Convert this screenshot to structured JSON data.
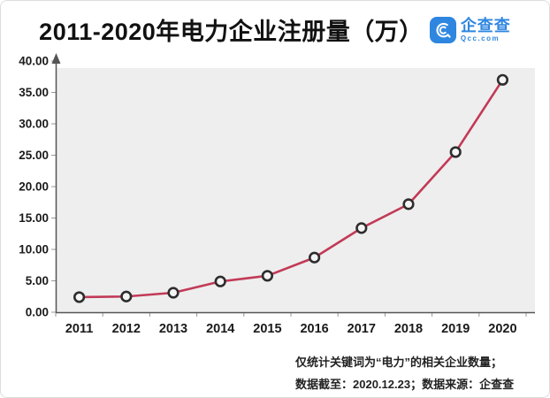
{
  "header": {
    "title": "2011-2020年电力企业注册量（万）",
    "logo": {
      "brand": "企查查",
      "domain": "Qcc.com",
      "color": "#2e86e0"
    }
  },
  "chart_data": {
    "type": "line",
    "title": "2011-2020年电力企业注册量（万）",
    "categories": [
      "2011",
      "2012",
      "2013",
      "2014",
      "2015",
      "2016",
      "2017",
      "2018",
      "2019",
      "2020"
    ],
    "series": [
      {
        "name": "电力企业注册量（万）",
        "values": [
          2.4,
          2.5,
          3.1,
          4.9,
          5.8,
          8.7,
          13.4,
          17.2,
          25.5,
          37.0
        ]
      }
    ],
    "xlabel": "",
    "ylabel": "",
    "ylim": [
      0,
      40
    ],
    "ytick_step": 5,
    "ytick_labels": [
      "0.00",
      "5.00",
      "10.00",
      "15.00",
      "20.00",
      "25.00",
      "30.00",
      "35.00",
      "40.00"
    ],
    "grid": false,
    "legend": "none",
    "plot_bg": "#eeeeee",
    "line_color": "#c23a57",
    "marker": "open-circle",
    "marker_stroke": "#2d2d2d",
    "marker_fill": "#f5f5f5",
    "axis_color": "#555555",
    "tick_color": "#999999"
  },
  "footnote": {
    "line1": "仅统计关键词为“电力”的相关企业数量；",
    "line2": "数据截至：2020.12.23；数据来源：企查查"
  }
}
